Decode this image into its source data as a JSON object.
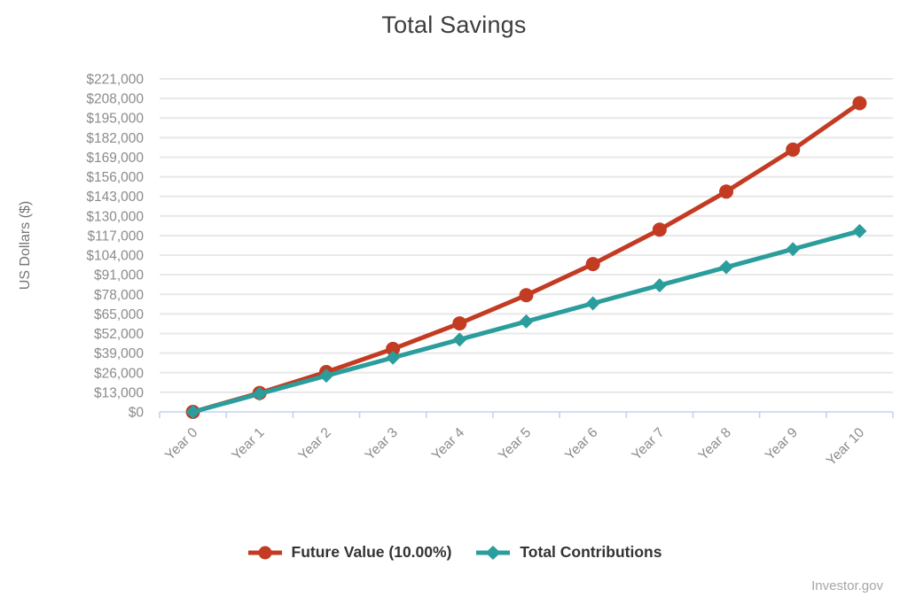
{
  "header": {
    "title": "Total Savings"
  },
  "footer": {
    "attribution": "Investor.gov"
  },
  "legend": {
    "items": [
      {
        "label": "Future Value (10.00%)",
        "color": "#c23b22",
        "marker": "circle"
      },
      {
        "label": "Total Contributions",
        "color": "#2a9d9c",
        "marker": "diamond"
      }
    ]
  },
  "chart_data": {
    "type": "line",
    "title": "Total Savings",
    "xlabel": "",
    "ylabel": "US Dollars ($)",
    "categories": [
      "Year 0",
      "Year 1",
      "Year 2",
      "Year 3",
      "Year 4",
      "Year 5",
      "Year 6",
      "Year 7",
      "Year 8",
      "Year 9",
      "Year 10"
    ],
    "series": [
      {
        "name": "Future Value (10.00%)",
        "color": "#c23b22",
        "marker": "circle",
        "values": [
          0,
          12566,
          26446,
          41782,
          58722,
          77437,
          98111,
          120950,
          146181,
          174054,
          204845
        ]
      },
      {
        "name": "Total Contributions",
        "color": "#2a9d9c",
        "marker": "diamond",
        "values": [
          0,
          12000,
          24000,
          36000,
          48000,
          60000,
          72000,
          84000,
          96000,
          108000,
          120000
        ]
      }
    ],
    "ylim": [
      0,
      221000
    ],
    "ytick_step": 13000,
    "ytick_labels": [
      "$0",
      "$13,000",
      "$26,000",
      "$39,000",
      "$52,000",
      "$65,000",
      "$78,000",
      "$91,000",
      "$104,000",
      "$117,000",
      "$130,000",
      "$143,000",
      "$156,000",
      "$169,000",
      "$182,000",
      "$195,000",
      "$208,000",
      "$221,000"
    ],
    "grid": true,
    "legend_position": "bottom",
    "axis_color": "#c5d1f2",
    "grid_color": "#e8e8e8",
    "tick_label_color": "#8b8b8b",
    "axis_title_color": "#757575"
  }
}
